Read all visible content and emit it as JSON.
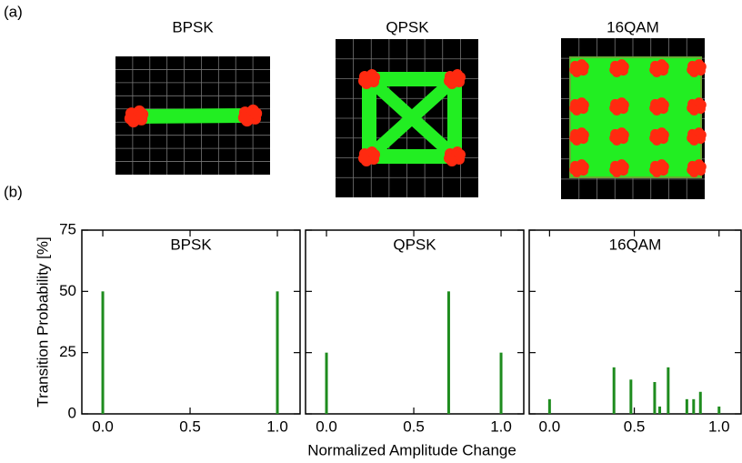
{
  "panel_labels": [
    "(a)",
    "(b)"
  ],
  "constellations": [
    {
      "title": "BPSK"
    },
    {
      "title": "QPSK"
    },
    {
      "title": "16QAM"
    }
  ],
  "xlabel": "Normalized Amplitude Change",
  "ylabel": "Transition Probability [%]",
  "chart_data": [
    {
      "type": "bar",
      "title": "BPSK",
      "x": [
        0,
        1
      ],
      "values": [
        50,
        50
      ],
      "color": "#1e8c1e",
      "xlim": [
        -0.12,
        1.13
      ],
      "ylim": [
        0,
        75
      ],
      "xticks": [
        {
          "value": 0,
          "label": "0.0"
        },
        {
          "value": 0.5,
          "label": "0.5"
        },
        {
          "value": 1,
          "label": "1.0"
        }
      ],
      "yticks": [
        0,
        25,
        50,
        75
      ]
    },
    {
      "type": "bar",
      "title": "QPSK",
      "x": [
        0,
        0.7,
        1
      ],
      "values": [
        25,
        50,
        25
      ],
      "color": "#1e8c1e",
      "xlim": [
        -0.12,
        1.13
      ],
      "ylim": [
        0,
        75
      ],
      "xticks": [
        {
          "value": 0,
          "label": "0.0"
        },
        {
          "value": 0.5,
          "label": "0.5"
        },
        {
          "value": 1,
          "label": "1.0"
        }
      ],
      "yticks": [
        0,
        25,
        50,
        75
      ]
    },
    {
      "type": "bar",
      "title": "16QAM",
      "x": [
        0,
        0.38,
        0.48,
        0.62,
        0.65,
        0.7,
        0.81,
        0.85,
        0.89,
        1.0
      ],
      "values": [
        6,
        19,
        14,
        13,
        3,
        19,
        6,
        6,
        9,
        3
      ],
      "color": "#1e8c1e",
      "xlim": [
        -0.12,
        1.13
      ],
      "ylim": [
        0,
        75
      ],
      "xticks": [
        {
          "value": 0,
          "label": "0.0"
        },
        {
          "value": 0.5,
          "label": "0.5"
        },
        {
          "value": 1,
          "label": "1.0"
        }
      ],
      "yticks": [
        0,
        25,
        50,
        75
      ]
    }
  ]
}
